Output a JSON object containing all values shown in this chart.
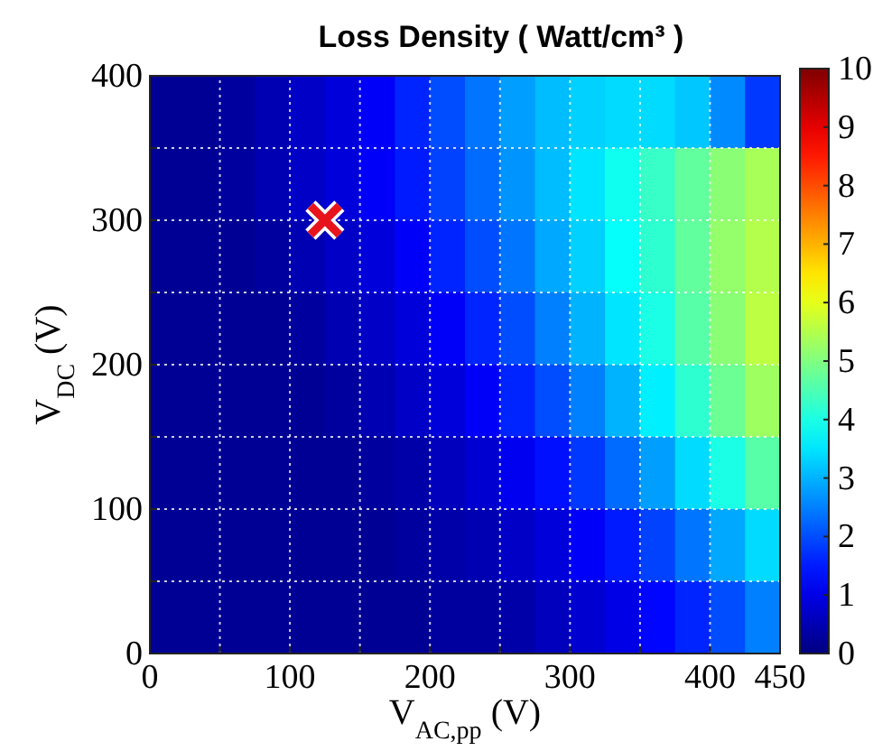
{
  "chart_data": {
    "type": "heatmap",
    "title": "Loss Density ( Watt/cm³ )",
    "xlabel": "V$_{AC,pp}$ (V)",
    "ylabel": "V$_{DC}$ (V)",
    "xlim": [
      0,
      450
    ],
    "xticks": [
      0,
      {
        "value": 50,
        "label": null
      },
      100,
      {
        "value": 150,
        "label": null
      },
      200,
      {
        "value": 250,
        "label": null
      },
      300,
      {
        "value": 350,
        "label": null
      },
      400,
      450
    ],
    "ylim": [
      0,
      400
    ],
    "yticks": [
      0,
      {
        "value": 50,
        "label": null
      },
      100,
      {
        "value": 150,
        "label": null
      },
      200,
      {
        "value": 250,
        "label": null
      },
      300,
      {
        "value": 350,
        "label": null
      },
      400
    ],
    "grid": true,
    "clim": [
      0,
      10
    ],
    "cticks": [
      0,
      1,
      2,
      3,
      4,
      5,
      6,
      7,
      8,
      9,
      10
    ],
    "cells": [
      [
        0.2,
        0.2,
        0.3,
        0.5,
        0.7,
        0.9,
        1.2,
        1.6,
        2.0,
        2.4,
        2.8,
        3.1,
        3.3,
        3.4,
        3.4,
        3.2,
        2.6,
        1.8
      ],
      [
        0.2,
        0.2,
        0.3,
        0.5,
        0.7,
        0.9,
        1.2,
        1.5,
        1.9,
        2.3,
        2.7,
        3.1,
        3.5,
        3.9,
        4.3,
        4.7,
        5.1,
        5.4
      ],
      [
        0.2,
        0.2,
        0.2,
        0.3,
        0.5,
        0.7,
        0.9,
        1.2,
        1.6,
        2.0,
        2.4,
        2.9,
        3.3,
        3.8,
        4.2,
        4.7,
        5.2,
        5.5
      ],
      [
        0.2,
        0.2,
        0.2,
        0.2,
        0.3,
        0.5,
        0.7,
        0.9,
        1.2,
        1.6,
        2.0,
        2.5,
        3.0,
        3.5,
        4.0,
        4.6,
        5.1,
        5.6
      ],
      [
        0.2,
        0.2,
        0.2,
        0.2,
        0.2,
        0.3,
        0.5,
        0.7,
        0.9,
        1.2,
        1.6,
        2.0,
        2.5,
        3.0,
        3.6,
        4.2,
        4.8,
        5.3
      ],
      [
        0.2,
        0.2,
        0.2,
        0.2,
        0.2,
        0.2,
        0.3,
        0.4,
        0.6,
        0.8,
        1.1,
        1.4,
        1.8,
        2.3,
        2.8,
        3.4,
        4.0,
        4.6
      ],
      [
        0.2,
        0.2,
        0.2,
        0.2,
        0.2,
        0.2,
        0.2,
        0.3,
        0.4,
        0.5,
        0.7,
        0.9,
        1.2,
        1.5,
        1.9,
        2.4,
        2.9,
        3.4
      ],
      [
        0.2,
        0.2,
        0.2,
        0.2,
        0.2,
        0.2,
        0.2,
        0.2,
        0.3,
        0.3,
        0.4,
        0.6,
        0.8,
        1.0,
        1.3,
        1.6,
        2.0,
        2.5
      ]
    ],
    "series": [
      {
        "type": "scatter",
        "x": [
          125
        ],
        "values": [
          300
        ],
        "color": "#e8141c",
        "marker": "cross"
      }
    ]
  }
}
